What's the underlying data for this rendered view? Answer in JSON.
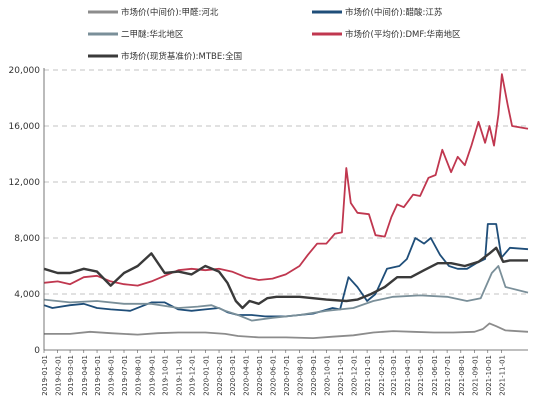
{
  "chart_data": {
    "type": "line",
    "legend_placement": "top",
    "grid": "horizontal dashed",
    "ylim": [
      0,
      20000
    ],
    "y_ticks": [
      "0",
      "4,000",
      "8,000",
      "12,000",
      "16,000",
      "20,000"
    ],
    "x_range": [
      "2019-01-01",
      "2021-12-31"
    ],
    "x_ticks": [
      "2019-01-01",
      "2019-02-01",
      "2019-03-01",
      "2019-04-01",
      "2019-05-01",
      "2019-06-01",
      "2019-07-01",
      "2019-08-01",
      "2019-09-01",
      "2019-10-01",
      "2019-11-01",
      "2019-12-01",
      "2020-01-01",
      "2020-02-01",
      "2020-03-01",
      "2020-04-01",
      "2020-05-01",
      "2020-06-01",
      "2020-07-01",
      "2020-08-01",
      "2020-09-01",
      "2020-10-01",
      "2020-11-01",
      "2020-12-01",
      "2021-01-01",
      "2021-02-01",
      "2021-03-01",
      "2021-04-01",
      "2021-05-01",
      "2021-06-01",
      "2021-07-01",
      "2021-08-01",
      "2021-09-01",
      "2021-10-01",
      "2021-11-01"
    ],
    "series": [
      {
        "name": "市场价(中间价):甲醛:河北",
        "color": "#8c8c8c",
        "points": [
          [
            "2019-01-01",
            1150
          ],
          [
            "2019-03-01",
            1150
          ],
          [
            "2019-04-15",
            1300
          ],
          [
            "2019-06-01",
            1200
          ],
          [
            "2019-08-01",
            1100
          ],
          [
            "2019-09-15",
            1200
          ],
          [
            "2019-11-01",
            1250
          ],
          [
            "2020-01-01",
            1250
          ],
          [
            "2020-02-15",
            1150
          ],
          [
            "2020-03-15",
            1000
          ],
          [
            "2020-05-01",
            900
          ],
          [
            "2020-07-01",
            900
          ],
          [
            "2020-09-01",
            850
          ],
          [
            "2020-10-15",
            950
          ],
          [
            "2020-12-01",
            1050
          ],
          [
            "2021-01-15",
            1250
          ],
          [
            "2021-03-01",
            1350
          ],
          [
            "2021-04-15",
            1300
          ],
          [
            "2021-06-01",
            1250
          ],
          [
            "2021-07-15",
            1250
          ],
          [
            "2021-09-01",
            1300
          ],
          [
            "2021-09-20",
            1500
          ],
          [
            "2021-10-05",
            1900
          ],
          [
            "2021-10-20",
            1700
          ],
          [
            "2021-11-10",
            1400
          ],
          [
            "2021-12-31",
            1300
          ]
        ]
      },
      {
        "name": "市场价(中间价):醋酸:江苏",
        "color": "#1f4e79",
        "points": [
          [
            "2019-01-01",
            3200
          ],
          [
            "2019-01-20",
            3000
          ],
          [
            "2019-03-01",
            3200
          ],
          [
            "2019-04-01",
            3300
          ],
          [
            "2019-05-01",
            3000
          ],
          [
            "2019-06-01",
            2900
          ],
          [
            "2019-07-15",
            2800
          ],
          [
            "2019-09-01",
            3400
          ],
          [
            "2019-10-01",
            3400
          ],
          [
            "2019-11-01",
            2900
          ],
          [
            "2019-12-01",
            2800
          ],
          [
            "2020-01-01",
            2900
          ],
          [
            "2020-02-01",
            3000
          ],
          [
            "2020-02-20",
            2700
          ],
          [
            "2020-03-15",
            2500
          ],
          [
            "2020-04-15",
            2500
          ],
          [
            "2020-05-15",
            2400
          ],
          [
            "2020-07-01",
            2400
          ],
          [
            "2020-09-01",
            2600
          ],
          [
            "2020-10-15",
            3000
          ],
          [
            "2020-11-01",
            2900
          ],
          [
            "2020-11-20",
            5200
          ],
          [
            "2020-12-10",
            4500
          ],
          [
            "2021-01-01",
            3500
          ],
          [
            "2021-01-20",
            4000
          ],
          [
            "2021-02-15",
            5800
          ],
          [
            "2021-03-15",
            6000
          ],
          [
            "2021-04-01",
            6500
          ],
          [
            "2021-04-20",
            8000
          ],
          [
            "2021-05-10",
            7600
          ],
          [
            "2021-05-25",
            8000
          ],
          [
            "2021-06-15",
            6800
          ],
          [
            "2021-07-05",
            6000
          ],
          [
            "2021-07-25",
            5800
          ],
          [
            "2021-08-15",
            5800
          ],
          [
            "2021-09-05",
            6200
          ],
          [
            "2021-09-25",
            6500
          ],
          [
            "2021-10-01",
            9000
          ],
          [
            "2021-10-20",
            9000
          ],
          [
            "2021-11-01",
            6600
          ],
          [
            "2021-11-20",
            7300
          ],
          [
            "2021-12-31",
            7200
          ]
        ]
      },
      {
        "name": "二甲醚:华北地区",
        "color": "#7a8f99",
        "points": [
          [
            "2019-01-01",
            3600
          ],
          [
            "2019-03-01",
            3400
          ],
          [
            "2019-05-01",
            3500
          ],
          [
            "2019-07-01",
            3300
          ],
          [
            "2019-09-01",
            3300
          ],
          [
            "2019-11-01",
            3000
          ],
          [
            "2019-12-15",
            3100
          ],
          [
            "2020-01-15",
            3200
          ],
          [
            "2020-02-15",
            2800
          ],
          [
            "2020-03-15",
            2500
          ],
          [
            "2020-04-15",
            2100
          ],
          [
            "2020-06-01",
            2300
          ],
          [
            "2020-08-01",
            2500
          ],
          [
            "2020-10-01",
            2800
          ],
          [
            "2020-12-01",
            3000
          ],
          [
            "2021-01-15",
            3500
          ],
          [
            "2021-03-01",
            3800
          ],
          [
            "2021-05-01",
            3900
          ],
          [
            "2021-07-01",
            3800
          ],
          [
            "2021-08-15",
            3500
          ],
          [
            "2021-09-15",
            3700
          ],
          [
            "2021-10-10",
            5500
          ],
          [
            "2021-10-25",
            6000
          ],
          [
            "2021-11-10",
            4500
          ],
          [
            "2021-12-31",
            4100
          ]
        ]
      },
      {
        "name": "市场价(平均价):DMF:华南地区",
        "color": "#c0374f",
        "points": [
          [
            "2019-01-01",
            4800
          ],
          [
            "2019-02-01",
            4900
          ],
          [
            "2019-03-01",
            4700
          ],
          [
            "2019-04-01",
            5200
          ],
          [
            "2019-05-01",
            5300
          ],
          [
            "2019-06-01",
            4900
          ],
          [
            "2019-07-01",
            4700
          ],
          [
            "2019-08-01",
            4600
          ],
          [
            "2019-09-01",
            4900
          ],
          [
            "2019-10-01",
            5300
          ],
          [
            "2019-11-01",
            5700
          ],
          [
            "2019-12-01",
            5800
          ],
          [
            "2020-01-01",
            5700
          ],
          [
            "2020-02-01",
            5800
          ],
          [
            "2020-03-01",
            5600
          ],
          [
            "2020-04-01",
            5200
          ],
          [
            "2020-05-01",
            5000
          ],
          [
            "2020-06-01",
            5100
          ],
          [
            "2020-07-01",
            5400
          ],
          [
            "2020-08-01",
            6000
          ],
          [
            "2020-08-20",
            6800
          ],
          [
            "2020-09-10",
            7600
          ],
          [
            "2020-10-01",
            7600
          ],
          [
            "2020-10-20",
            8300
          ],
          [
            "2020-11-05",
            8400
          ],
          [
            "2020-11-15",
            13000
          ],
          [
            "2020-11-25",
            10500
          ],
          [
            "2020-12-10",
            9800
          ],
          [
            "2021-01-05",
            9700
          ],
          [
            "2021-01-20",
            8200
          ],
          [
            "2021-02-10",
            8100
          ],
          [
            "2021-02-25",
            9500
          ],
          [
            "2021-03-10",
            10400
          ],
          [
            "2021-03-25",
            10200
          ],
          [
            "2021-04-15",
            11100
          ],
          [
            "2021-05-01",
            11000
          ],
          [
            "2021-05-20",
            12300
          ],
          [
            "2021-06-05",
            12500
          ],
          [
            "2021-06-20",
            14300
          ],
          [
            "2021-07-10",
            12700
          ],
          [
            "2021-07-25",
            13800
          ],
          [
            "2021-08-10",
            13200
          ],
          [
            "2021-08-25",
            14600
          ],
          [
            "2021-09-10",
            16300
          ],
          [
            "2021-09-25",
            14800
          ],
          [
            "2021-10-05",
            16000
          ],
          [
            "2021-10-15",
            14600
          ],
          [
            "2021-10-25",
            16800
          ],
          [
            "2021-11-02",
            19700
          ],
          [
            "2021-11-15",
            17500
          ],
          [
            "2021-11-25",
            16000
          ],
          [
            "2021-12-31",
            15800
          ]
        ]
      },
      {
        "name": "市场价(现货基准价):MTBE:全国",
        "color": "#3a3a3a",
        "points": [
          [
            "2019-01-01",
            5800
          ],
          [
            "2019-02-01",
            5500
          ],
          [
            "2019-03-01",
            5500
          ],
          [
            "2019-04-01",
            5800
          ],
          [
            "2019-05-01",
            5600
          ],
          [
            "2019-06-01",
            4600
          ],
          [
            "2019-07-01",
            5500
          ],
          [
            "2019-08-01",
            6000
          ],
          [
            "2019-09-01",
            6900
          ],
          [
            "2019-10-01",
            5500
          ],
          [
            "2019-11-01",
            5600
          ],
          [
            "2019-12-01",
            5400
          ],
          [
            "2020-01-01",
            6000
          ],
          [
            "2020-02-01",
            5600
          ],
          [
            "2020-02-20",
            4800
          ],
          [
            "2020-03-10",
            3500
          ],
          [
            "2020-03-25",
            3000
          ],
          [
            "2020-04-10",
            3500
          ],
          [
            "2020-05-01",
            3300
          ],
          [
            "2020-05-20",
            3700
          ],
          [
            "2020-06-10",
            3800
          ],
          [
            "2020-08-01",
            3800
          ],
          [
            "2020-10-01",
            3600
          ],
          [
            "2020-11-15",
            3500
          ],
          [
            "2020-12-10",
            3600
          ],
          [
            "2021-01-10",
            4000
          ],
          [
            "2021-02-10",
            4500
          ],
          [
            "2021-03-10",
            5200
          ],
          [
            "2021-04-10",
            5200
          ],
          [
            "2021-05-10",
            5700
          ],
          [
            "2021-06-10",
            6200
          ],
          [
            "2021-07-10",
            6200
          ],
          [
            "2021-08-10",
            6000
          ],
          [
            "2021-09-10",
            6300
          ],
          [
            "2021-10-05",
            6900
          ],
          [
            "2021-10-20",
            7300
          ],
          [
            "2021-11-05",
            6300
          ],
          [
            "2021-11-20",
            6400
          ],
          [
            "2021-12-31",
            6400
          ]
        ]
      }
    ]
  }
}
